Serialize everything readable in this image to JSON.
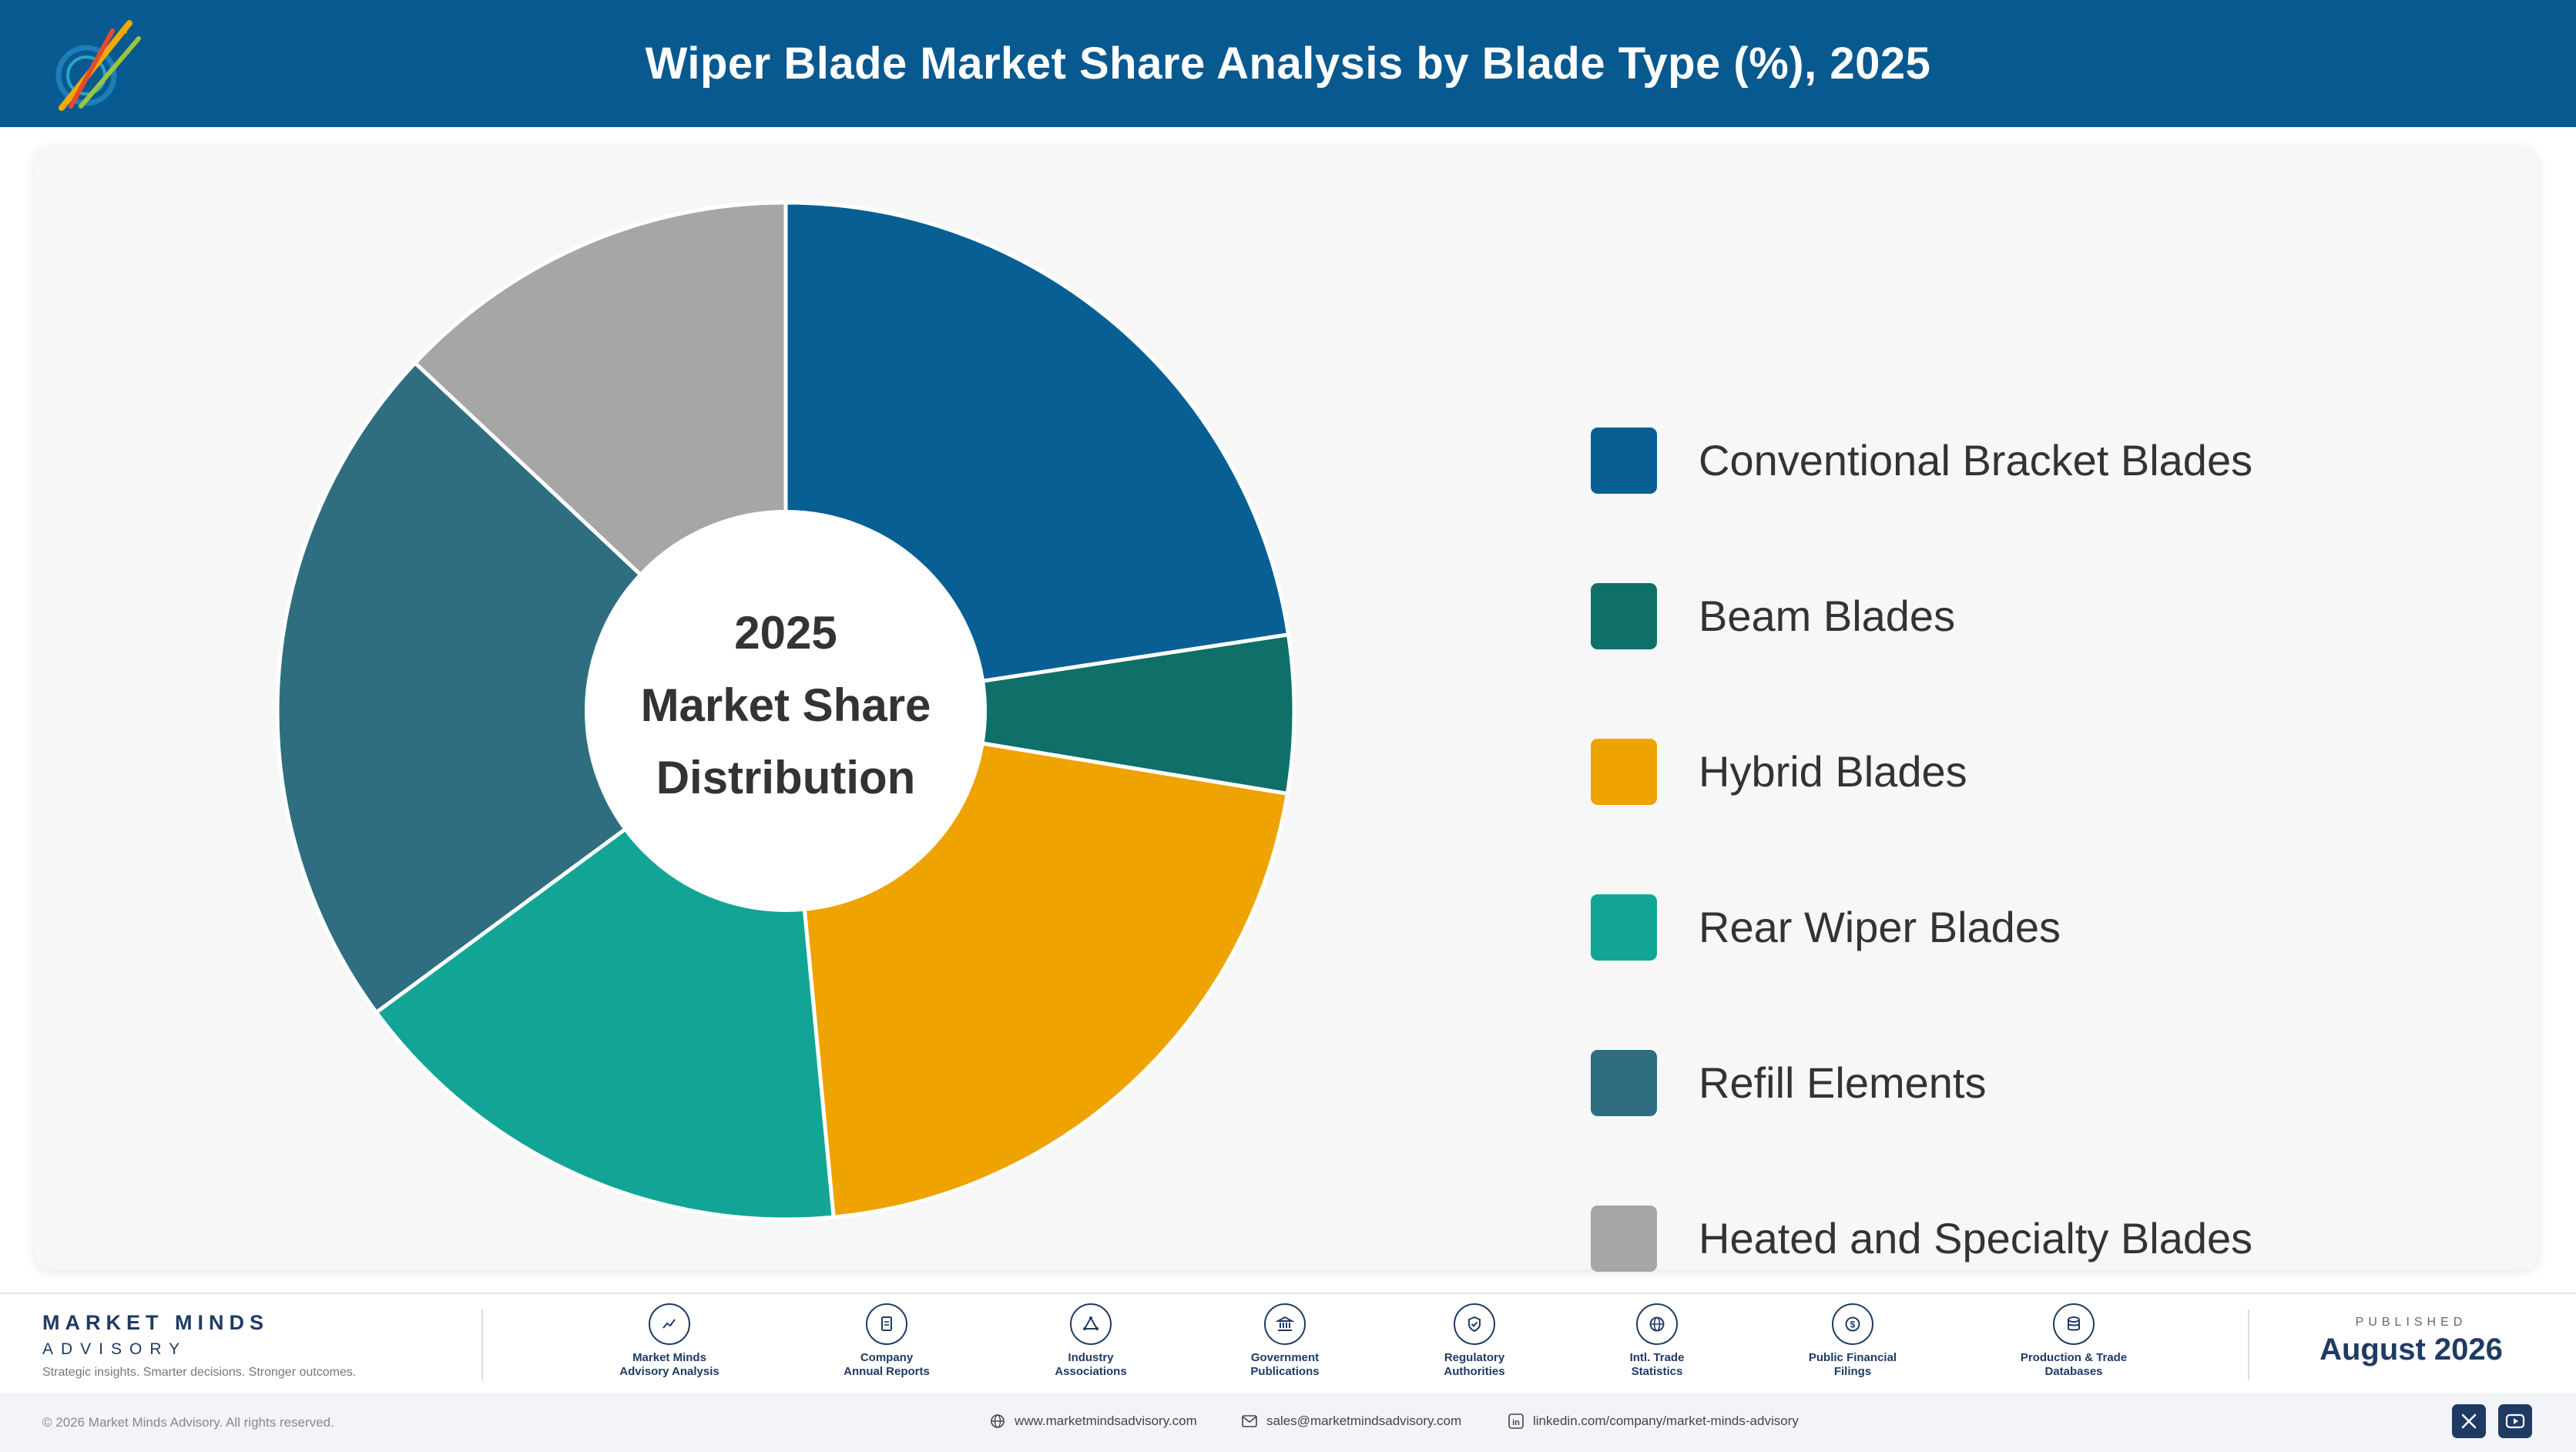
{
  "header": {
    "title": "Wiper Blade Market Share Analysis by Blade Type (%), 2025",
    "background": "#085990",
    "logo_text": "Market Minds Advisory"
  },
  "chart_data": {
    "type": "pie",
    "title": "Wiper Blade Market Share Analysis by Blade Type (%), 2025",
    "donut": true,
    "center_label": [
      "2025",
      "Market Share",
      "Distribution"
    ],
    "legend_position": "right",
    "categories": [
      "Conventional Bracket Blades",
      "Beam Blades",
      "Hybrid Blades",
      "Rear Wiper Blades",
      "Refill Elements",
      "Heated and Specialty Blades"
    ],
    "values": [
      22.6,
      5.0,
      20.9,
      16.4,
      22.1,
      13.0
    ],
    "colors": [
      "#085F94",
      "#0E7069",
      "#EFA300",
      "#12A596",
      "#2F6E80",
      "#A6A6A6"
    ]
  },
  "footer": {
    "brand_name": "MARKET MINDS",
    "brand_sub": "ADVISORY",
    "tagline": "Strategic insights. Smarter decisions. Stronger outcomes.",
    "sources": [
      {
        "label": "Market Minds\nAdvisory Analysis",
        "icon": "chart-line-icon"
      },
      {
        "label": "Company\nAnnual Reports",
        "icon": "document-icon"
      },
      {
        "label": "Industry\nAssociations",
        "icon": "network-icon"
      },
      {
        "label": "Government\nPublications",
        "icon": "government-building-icon"
      },
      {
        "label": "Regulatory\nAuthorities",
        "icon": "shield-check-icon"
      },
      {
        "label": "Intl. Trade\nStatistics",
        "icon": "globe-icon"
      },
      {
        "label": "Public Financial\nFilings",
        "icon": "coin-icon"
      },
      {
        "label": "Production & Trade\nDatabases",
        "icon": "database-icon"
      }
    ],
    "published_label": "PUBLISHED",
    "published_date": "August 2026",
    "copyright": "© 2026 Market Minds Advisory. All rights reserved.",
    "website": "www.marketmindsadvisory.com",
    "email": "sales@marketmindsadvisory.com",
    "linkedin": "linkedin.com/company/market-minds-advisory",
    "social": [
      "x-icon",
      "youtube-icon"
    ]
  }
}
